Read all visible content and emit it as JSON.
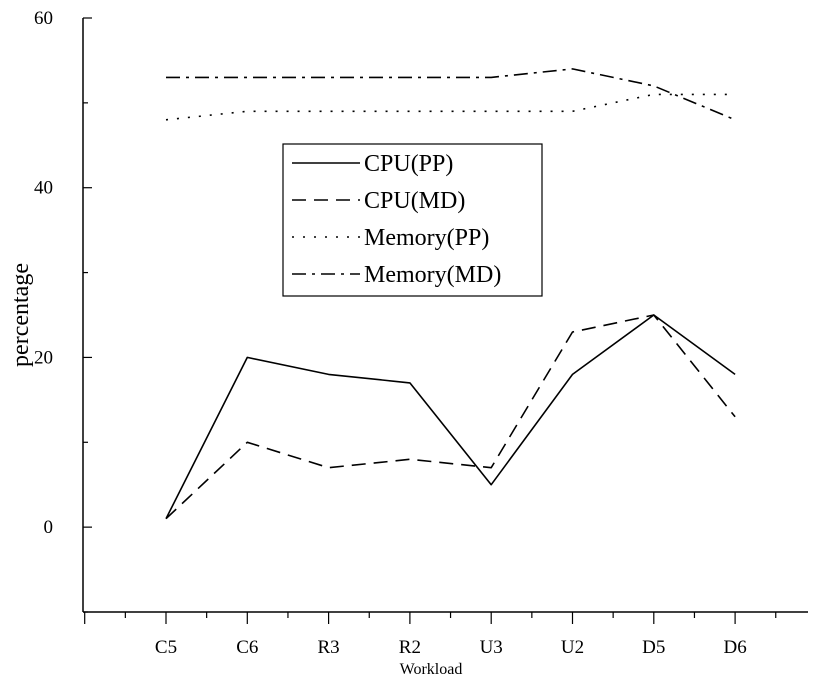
{
  "chart_data": {
    "type": "line",
    "xlabel": "Workload",
    "ylabel": "percentage",
    "categories": [
      "C5",
      "C6",
      "R3",
      "R2",
      "U3",
      "U2",
      "D5",
      "D6"
    ],
    "y_ticks": [
      0,
      20,
      40,
      60
    ],
    "ylim": [
      -10,
      60
    ],
    "grid": false,
    "legend_position": "center-right",
    "series": [
      {
        "name": "CPU(PP)",
        "line_style": "solid",
        "values": [
          1,
          20,
          18,
          17,
          5,
          18,
          25,
          18
        ]
      },
      {
        "name": "CPU(MD)",
        "line_style": "dashed",
        "values": [
          1,
          10,
          7,
          8,
          7,
          23,
          25,
          13
        ]
      },
      {
        "name": "Memory(PP)",
        "line_style": "dotted",
        "values": [
          48,
          49,
          49,
          49,
          49,
          49,
          51,
          51
        ]
      },
      {
        "name": "Memory(MD)",
        "line_style": "dash-dot",
        "values": [
          53,
          53,
          53,
          53,
          53,
          54,
          52,
          48
        ]
      }
    ]
  },
  "colors": {
    "line": "#000000",
    "background": "#ffffff"
  }
}
